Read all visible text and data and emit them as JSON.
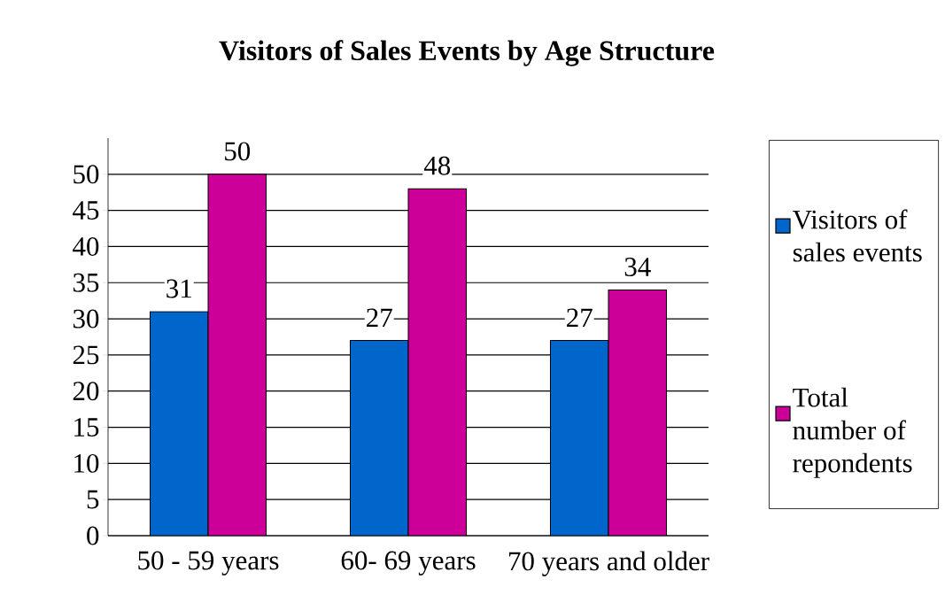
{
  "chart_data": {
    "type": "bar",
    "title": "Visitors of Sales Events by Age Structure",
    "categories": [
      "50 - 59 years",
      "60- 69 years",
      "70 years and older"
    ],
    "series": [
      {
        "name": "Visitors of sales events",
        "color": "#0066cc",
        "values": [
          31,
          27,
          27
        ]
      },
      {
        "name": "Total number of repondents",
        "color": "#cc0099",
        "values": [
          50,
          48,
          34
        ]
      }
    ],
    "ylim": [
      0,
      55
    ],
    "yticks": [
      0,
      5,
      10,
      15,
      20,
      25,
      30,
      35,
      40,
      45,
      50
    ],
    "grid": "y",
    "legend": "right",
    "data_labels": true
  }
}
